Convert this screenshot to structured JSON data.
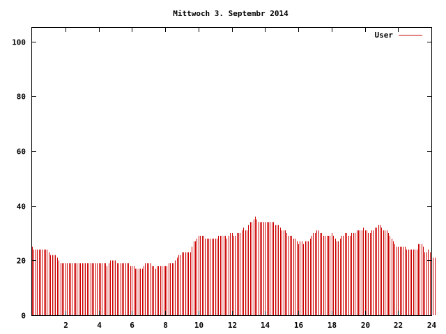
{
  "chart_data": {
    "type": "bar",
    "title": "Mittwoch 3. Septembr 2014",
    "xlabel": "",
    "ylabel": "",
    "xlim": [
      0,
      24
    ],
    "ylim": [
      0,
      105
    ],
    "x_ticks": [
      "2",
      "4",
      "6",
      "8",
      "10",
      "12",
      "14",
      "16",
      "18",
      "20",
      "22",
      "24"
    ],
    "y_ticks": [
      "0",
      "20",
      "40",
      "60",
      "80",
      "100"
    ],
    "grid": false,
    "legend_position": "top-right",
    "bar_color": "#cc0000",
    "series": [
      {
        "name": "User",
        "color": "#cc0000",
        "sample_interval_hours": 0.1,
        "values": [
          25,
          24,
          24,
          24,
          24,
          24,
          24,
          24,
          24,
          24,
          23,
          22,
          22,
          22,
          22,
          21,
          20,
          19,
          19,
          19,
          19,
          19,
          19,
          19,
          19,
          19,
          19,
          19,
          19,
          19,
          19,
          19,
          19,
          19,
          19,
          19,
          19,
          19,
          19,
          19,
          19,
          19,
          19,
          19,
          19,
          18,
          19,
          20,
          20,
          20,
          20,
          19,
          19,
          19,
          19,
          19,
          19,
          19,
          19,
          18,
          18,
          18,
          17,
          17,
          17,
          17,
          17,
          18,
          19,
          19,
          19,
          19,
          18,
          18,
          17,
          18,
          18,
          18,
          18,
          18,
          18,
          18,
          19,
          19,
          19,
          19,
          20,
          21,
          22,
          22,
          23,
          23,
          23,
          23,
          23,
          23,
          25,
          27,
          27,
          28,
          29,
          29,
          29,
          29,
          28,
          28,
          28,
          28,
          28,
          28,
          28,
          28,
          29,
          29,
          29,
          29,
          29,
          28,
          29,
          30,
          30,
          29,
          29,
          30,
          30,
          30,
          31,
          32,
          31,
          31,
          33,
          34,
          34,
          35,
          36,
          35,
          34,
          34,
          34,
          34,
          34,
          34,
          34,
          34,
          34,
          34,
          33,
          33,
          33,
          32,
          31,
          31,
          31,
          30,
          29,
          29,
          29,
          28,
          28,
          27,
          26,
          27,
          27,
          26,
          27,
          27,
          27,
          28,
          29,
          30,
          30,
          31,
          31,
          30,
          30,
          29,
          29,
          29,
          29,
          29,
          30,
          29,
          28,
          27,
          27,
          28,
          29,
          29,
          30,
          30,
          29,
          29,
          30,
          30,
          30,
          31,
          31,
          31,
          31,
          32,
          31,
          31,
          30,
          30,
          31,
          31,
          32,
          32,
          33,
          33,
          32,
          31,
          31,
          31,
          30,
          29,
          28,
          27,
          26,
          25,
          25,
          25,
          25,
          25,
          25,
          24,
          24,
          24,
          24,
          24,
          24,
          24,
          26,
          26,
          26,
          25,
          23,
          23,
          24,
          23,
          22,
          21,
          21
        ]
      }
    ]
  }
}
